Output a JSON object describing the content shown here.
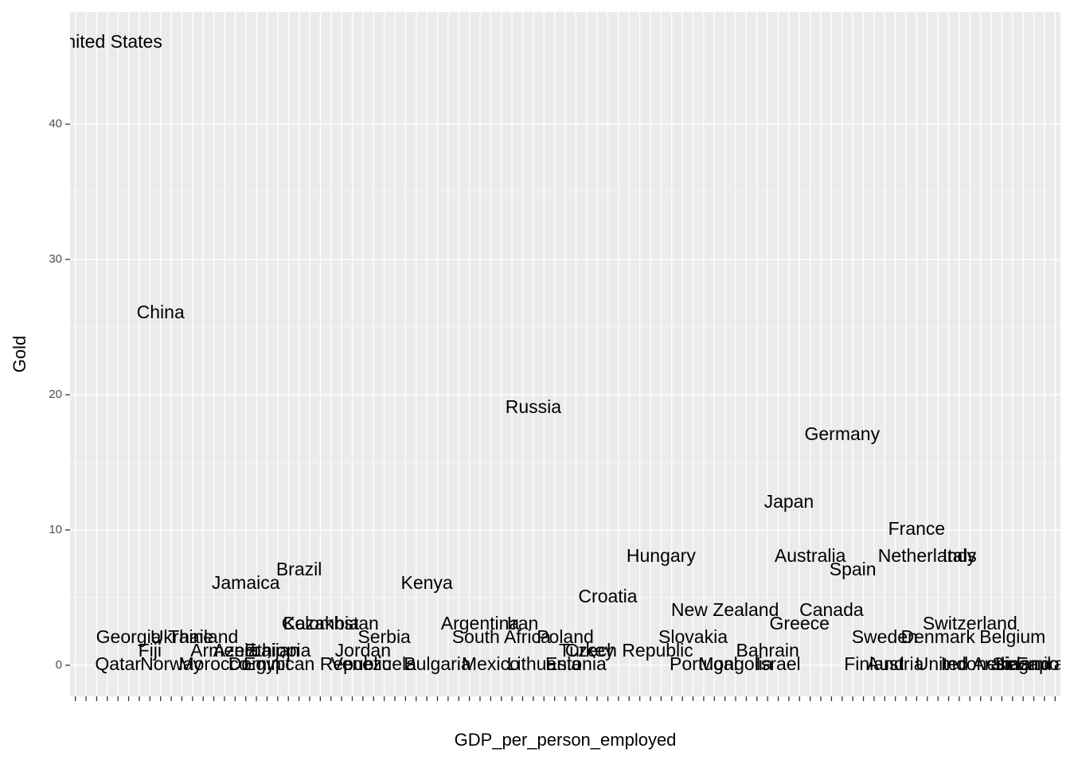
{
  "chart_data": {
    "type": "text-scatter",
    "x_label": "GDP_per_person_employed",
    "y_label": "Gold",
    "categories": [
      null,
      null,
      null,
      null,
      null,
      null,
      null,
      null,
      null,
      null,
      null,
      null,
      null,
      null,
      null,
      null,
      null,
      null,
      null,
      null,
      null,
      null,
      null,
      null,
      null,
      null,
      null,
      null,
      null,
      null,
      null,
      null,
      null,
      null,
      null,
      null,
      null,
      null,
      null,
      null,
      null,
      null,
      null,
      null,
      null,
      null,
      null,
      null,
      null,
      null,
      null,
      null,
      null,
      null,
      null,
      null,
      null,
      null,
      null,
      null,
      null,
      null,
      null,
      null,
      null,
      null,
      null,
      null,
      null,
      null,
      null,
      null,
      null,
      null,
      null,
      null,
      null,
      null,
      null,
      null,
      null,
      null,
      null,
      null,
      null,
      null,
      null,
      null,
      null,
      null,
      null,
      null,
      null
    ],
    "labels": [
      null,
      null,
      null,
      "United States",
      "Qatar",
      "Georgia",
      null,
      "Fiji",
      "China",
      "Norway",
      "Ukraine",
      null,
      "Thailand",
      "Morocco",
      "Armenia",
      null,
      "Jamaica",
      "Azerbaijan",
      "Egypt",
      "Ethiopia",
      null,
      "Brazil",
      "Dominican Republic",
      "Colombia",
      "Kazakhstan",
      null,
      null,
      "Jordan",
      "Venezuela",
      "Serbia",
      null,
      null,
      null,
      "Kenya",
      "Bulgaria",
      null,
      null,
      null,
      "Argentina",
      "Mexico",
      "South Africa",
      null,
      "Iran",
      "Russia",
      "Lithuania",
      null,
      "Poland",
      "Estonia",
      "Turkey",
      null,
      "Croatia",
      null,
      "Czech Republic",
      null,
      null,
      "Hungary",
      null,
      null,
      "Slovakia",
      "Portugal",
      null,
      "New Zealand",
      "Mongolia",
      null,
      null,
      "Bahrain",
      "Israel",
      "Japan",
      "Greece",
      "Australia",
      null,
      "Canada",
      "Germany",
      "Spain",
      null,
      "Finland",
      "Sweden",
      "Austria",
      null,
      "France",
      "Netherlands",
      "Denmark",
      null,
      "Italy",
      "Switzerland",
      "Indonesia",
      null,
      "United Arab Emirates",
      "Belgium",
      "Ireland",
      "Singapore",
      null,
      null
    ],
    "values": [
      null,
      null,
      null,
      46,
      0,
      2,
      null,
      1,
      26,
      0,
      2,
      null,
      2,
      0,
      1,
      null,
      6,
      1,
      0,
      1,
      null,
      7,
      0,
      3,
      3,
      null,
      null,
      1,
      0,
      2,
      null,
      null,
      null,
      6,
      0,
      null,
      null,
      null,
      3,
      0,
      2,
      null,
      3,
      19,
      0,
      null,
      2,
      0,
      1,
      null,
      5,
      null,
      1,
      null,
      null,
      8,
      null,
      null,
      2,
      0,
      null,
      4,
      0,
      null,
      null,
      1,
      0,
      12,
      3,
      8,
      null,
      4,
      17,
      7,
      null,
      0,
      2,
      0,
      null,
      10,
      8,
      2,
      null,
      8,
      3,
      0,
      null,
      0,
      2,
      0,
      0,
      null,
      null
    ],
    "ylim": [
      -2.3,
      48.3
    ],
    "yticks": [
      0,
      10,
      20,
      30,
      40
    ],
    "grid": true
  }
}
